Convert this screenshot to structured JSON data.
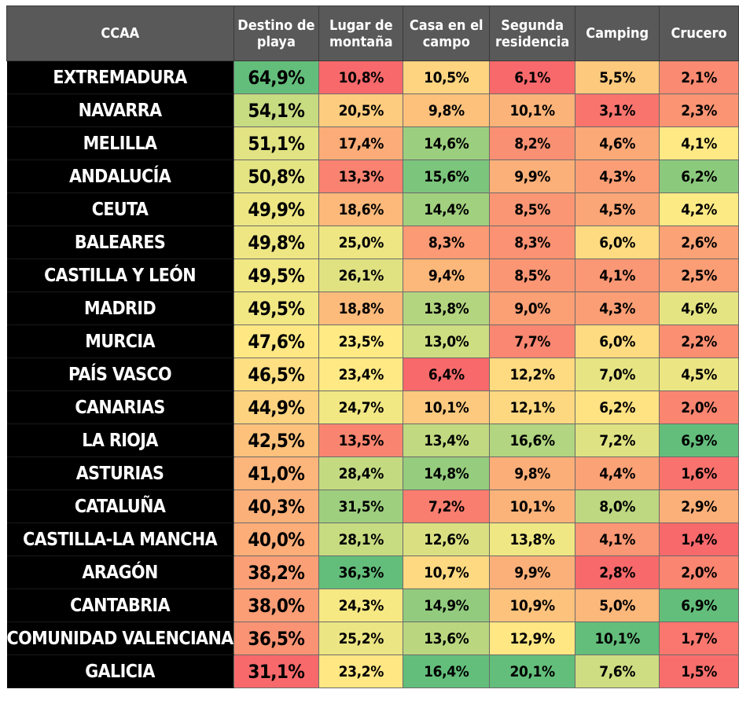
{
  "table": {
    "corner_header": "CCAA",
    "columns": [
      [
        "Destino de",
        "playa"
      ],
      [
        "Lugar de",
        "montaña"
      ],
      [
        "Casa en el",
        "campo"
      ],
      [
        "Segunda",
        "residencia"
      ],
      [
        "Camping"
      ],
      [
        "Crucero"
      ]
    ]
  },
  "chart_data": {
    "type": "heatmap",
    "title": "",
    "row_header": "CCAA",
    "columns": [
      "Destino de playa",
      "Lugar de montaña",
      "Casa en el campo",
      "Segunda residencia",
      "Camping",
      "Crucero"
    ],
    "unit": "%",
    "color_scale": {
      "low": "#f8696b",
      "mid": "#ffeb84",
      "high": "#63be7b"
    },
    "rows": [
      {
        "label": "EXTREMADURA",
        "values": [
          64.9,
          10.8,
          10.5,
          6.1,
          5.5,
          2.1
        ],
        "display": [
          "64,9%",
          "10,8%",
          "10,5%",
          "6,1%",
          "5,5%",
          "2,1%"
        ]
      },
      {
        "label": "NAVARRA",
        "values": [
          54.1,
          20.5,
          9.8,
          10.1,
          3.1,
          2.3
        ],
        "display": [
          "54,1%",
          "20,5%",
          "9,8%",
          "10,1%",
          "3,1%",
          "2,3%"
        ]
      },
      {
        "label": "MELILLA",
        "values": [
          51.1,
          17.4,
          14.6,
          8.2,
          4.6,
          4.1
        ],
        "display": [
          "51,1%",
          "17,4%",
          "14,6%",
          "8,2%",
          "4,6%",
          "4,1%"
        ]
      },
      {
        "label": "ANDALUCÍA",
        "values": [
          50.8,
          13.3,
          15.6,
          9.9,
          4.3,
          6.2
        ],
        "display": [
          "50,8%",
          "13,3%",
          "15,6%",
          "9,9%",
          "4,3%",
          "6,2%"
        ]
      },
      {
        "label": "CEUTA",
        "values": [
          49.9,
          18.6,
          14.4,
          8.5,
          4.5,
          4.2
        ],
        "display": [
          "49,9%",
          "18,6%",
          "14,4%",
          "8,5%",
          "4,5%",
          "4,2%"
        ]
      },
      {
        "label": "BALEARES",
        "values": [
          49.8,
          25.0,
          8.3,
          8.3,
          6.0,
          2.6
        ],
        "display": [
          "49,8%",
          "25,0%",
          "8,3%",
          "8,3%",
          "6,0%",
          "2,6%"
        ]
      },
      {
        "label": "CASTILLA Y LEÓN",
        "values": [
          49.5,
          26.1,
          9.4,
          8.5,
          4.1,
          2.5
        ],
        "display": [
          "49,5%",
          "26,1%",
          "9,4%",
          "8,5%",
          "4,1%",
          "2,5%"
        ]
      },
      {
        "label": "MADRID",
        "values": [
          49.5,
          18.8,
          13.8,
          9.0,
          4.3,
          4.6
        ],
        "display": [
          "49,5%",
          "18,8%",
          "13,8%",
          "9,0%",
          "4,3%",
          "4,6%"
        ]
      },
      {
        "label": "MURCIA",
        "values": [
          47.6,
          23.5,
          13.0,
          7.7,
          6.0,
          2.2
        ],
        "display": [
          "47,6%",
          "23,5%",
          "13,0%",
          "7,7%",
          "6,0%",
          "2,2%"
        ]
      },
      {
        "label": "PAÍS VASCO",
        "values": [
          46.5,
          23.4,
          6.4,
          12.2,
          7.0,
          4.5
        ],
        "display": [
          "46,5%",
          "23,4%",
          "6,4%",
          "12,2%",
          "7,0%",
          "4,5%"
        ]
      },
      {
        "label": "CANARIAS",
        "values": [
          44.9,
          24.7,
          10.1,
          12.1,
          6.2,
          2.0
        ],
        "display": [
          "44,9%",
          "24,7%",
          "10,1%",
          "12,1%",
          "6,2%",
          "2,0%"
        ]
      },
      {
        "label": "LA RIOJA",
        "values": [
          42.5,
          13.5,
          13.4,
          16.6,
          7.2,
          6.9
        ],
        "display": [
          "42,5%",
          "13,5%",
          "13,4%",
          "16,6%",
          "7,2%",
          "6,9%"
        ]
      },
      {
        "label": "ASTURIAS",
        "values": [
          41.0,
          28.4,
          14.8,
          9.8,
          4.4,
          1.6
        ],
        "display": [
          "41,0%",
          "28,4%",
          "14,8%",
          "9,8%",
          "4,4%",
          "1,6%"
        ]
      },
      {
        "label": "CATALUÑA",
        "values": [
          40.3,
          31.5,
          7.2,
          10.1,
          8.0,
          2.9
        ],
        "display": [
          "40,3%",
          "31,5%",
          "7,2%",
          "10,1%",
          "8,0%",
          "2,9%"
        ]
      },
      {
        "label": "CASTILLA-LA MANCHA",
        "values": [
          40.0,
          28.1,
          12.6,
          13.8,
          4.1,
          1.4
        ],
        "display": [
          "40,0%",
          "28,1%",
          "12,6%",
          "13,8%",
          "4,1%",
          "1,4%"
        ]
      },
      {
        "label": "ARAGÓN",
        "values": [
          38.2,
          36.3,
          10.7,
          9.9,
          2.8,
          2.0
        ],
        "display": [
          "38,2%",
          "36,3%",
          "10,7%",
          "9,9%",
          "2,8%",
          "2,0%"
        ]
      },
      {
        "label": "CANTABRIA",
        "values": [
          38.0,
          24.3,
          14.9,
          10.9,
          5.0,
          6.9
        ],
        "display": [
          "38,0%",
          "24,3%",
          "14,9%",
          "10,9%",
          "5,0%",
          "6,9%"
        ]
      },
      {
        "label": "COMUNIDAD VALENCIANA",
        "values": [
          36.5,
          25.2,
          13.6,
          12.9,
          10.1,
          1.7
        ],
        "display": [
          "36,5%",
          "25,2%",
          "13,6%",
          "12,9%",
          "10,1%",
          "1,7%"
        ]
      },
      {
        "label": "GALICIA",
        "values": [
          31.1,
          23.2,
          16.4,
          20.1,
          7.6,
          1.5
        ],
        "display": [
          "31,1%",
          "23,2%",
          "16,4%",
          "20,1%",
          "7,6%",
          "1,5%"
        ]
      }
    ]
  }
}
